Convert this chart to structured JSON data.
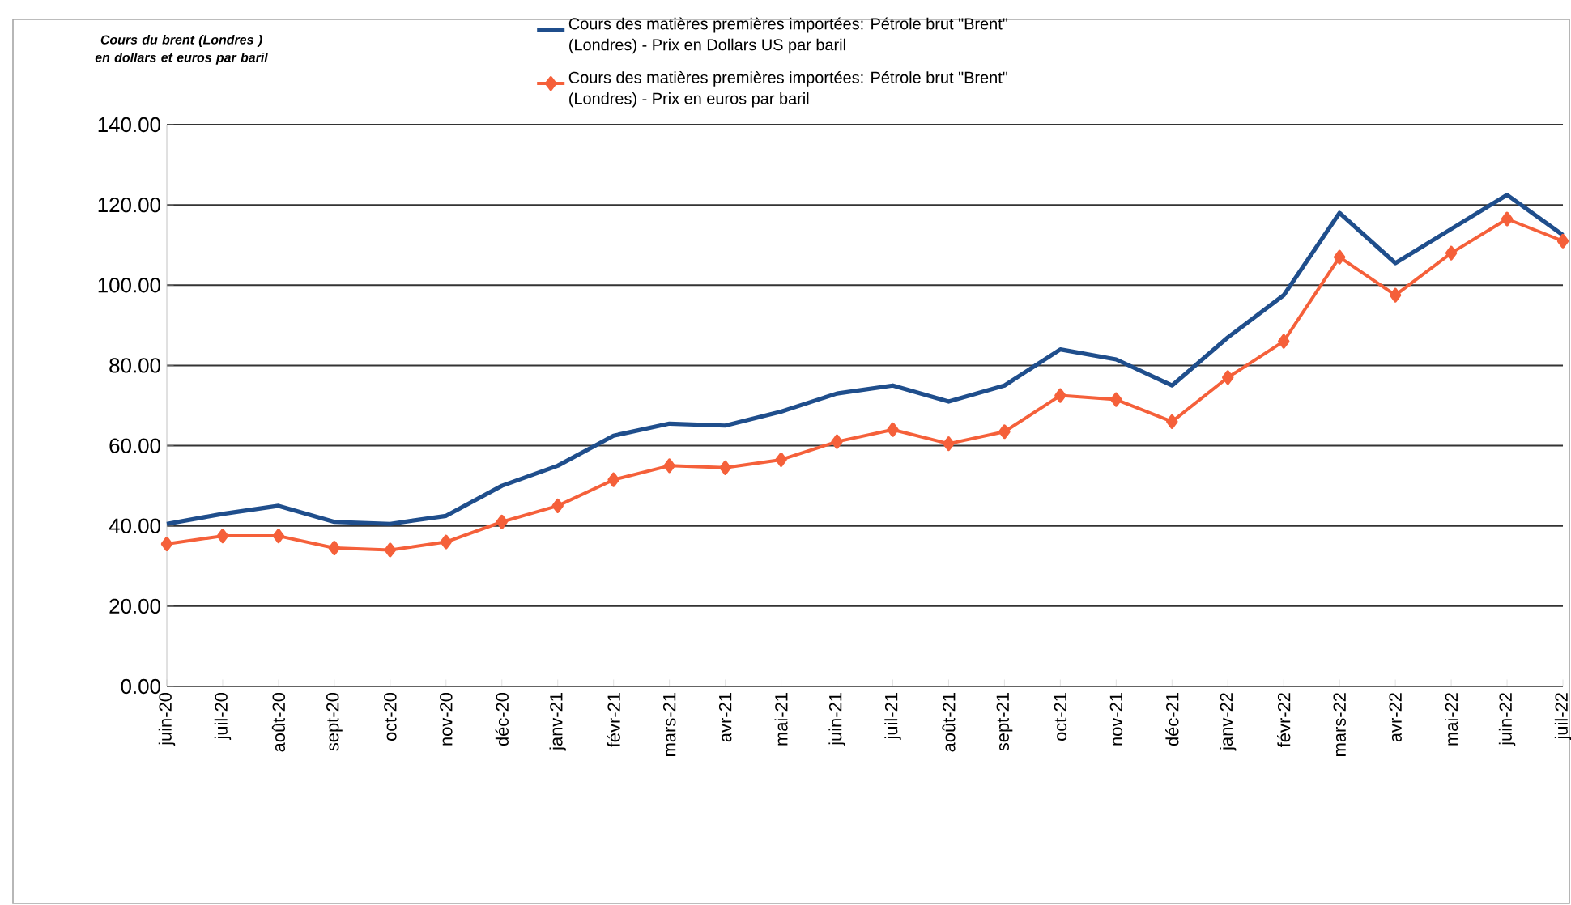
{
  "chart_data": {
    "type": "line",
    "title": "Cours du brent (Londres ) en dollars et euros par baril",
    "categories": [
      "juin-20",
      "juil-20",
      "août-20",
      "sept-20",
      "oct-20",
      "nov-20",
      "déc-20",
      "janv-21",
      "févr-21",
      "mars-21",
      "avr-21",
      "mai-21",
      "juin-21",
      "juil-21",
      "août-21",
      "sept-21",
      "oct-21",
      "nov-21",
      "déc-21",
      "janv-22",
      "févr-22",
      "mars-22",
      "avr-22",
      "mai-22",
      "juin-22",
      "juil-22"
    ],
    "series": [
      {
        "name": "Cours des matières premières importées: Pétrole brut \"Brent\" (Londres) - Prix en Dollars US par baril",
        "color": "#1f4e8c",
        "marker": "none",
        "values": [
          40.5,
          43,
          45,
          41,
          40.5,
          42.5,
          50,
          55,
          62.5,
          65.5,
          65,
          68.5,
          73,
          75,
          71,
          75,
          84,
          81.5,
          75,
          87,
          97.5,
          118,
          105.5,
          114,
          122.5,
          112.5
        ]
      },
      {
        "name": "Cours des matières premières importées: Pétrole brut \"Brent\" (Londres) - Prix en euros par baril",
        "color": "#f5603a",
        "marker": "diamond",
        "values": [
          35.5,
          37.5,
          37.5,
          34.5,
          34,
          36,
          41,
          45,
          51.5,
          55,
          54.5,
          56.5,
          61,
          64,
          60.5,
          63.5,
          72.5,
          71.5,
          66,
          77,
          86,
          107,
          97.5,
          108,
          116.5,
          111
        ]
      }
    ],
    "ylim": [
      0,
      140
    ],
    "yticks": [
      {
        "value": 0,
        "label": "0.00"
      },
      {
        "value": 20,
        "label": "20.00"
      },
      {
        "value": 40,
        "label": "40.00"
      },
      {
        "value": 60,
        "label": "60.00"
      },
      {
        "value": 80,
        "label": "80.00"
      },
      {
        "value": 100,
        "label": "100.00"
      },
      {
        "value": 120,
        "label": "120.00"
      },
      {
        "value": 140,
        "label": "140.00"
      }
    ],
    "grid": "y",
    "legend": "top",
    "line_style": "solid"
  }
}
